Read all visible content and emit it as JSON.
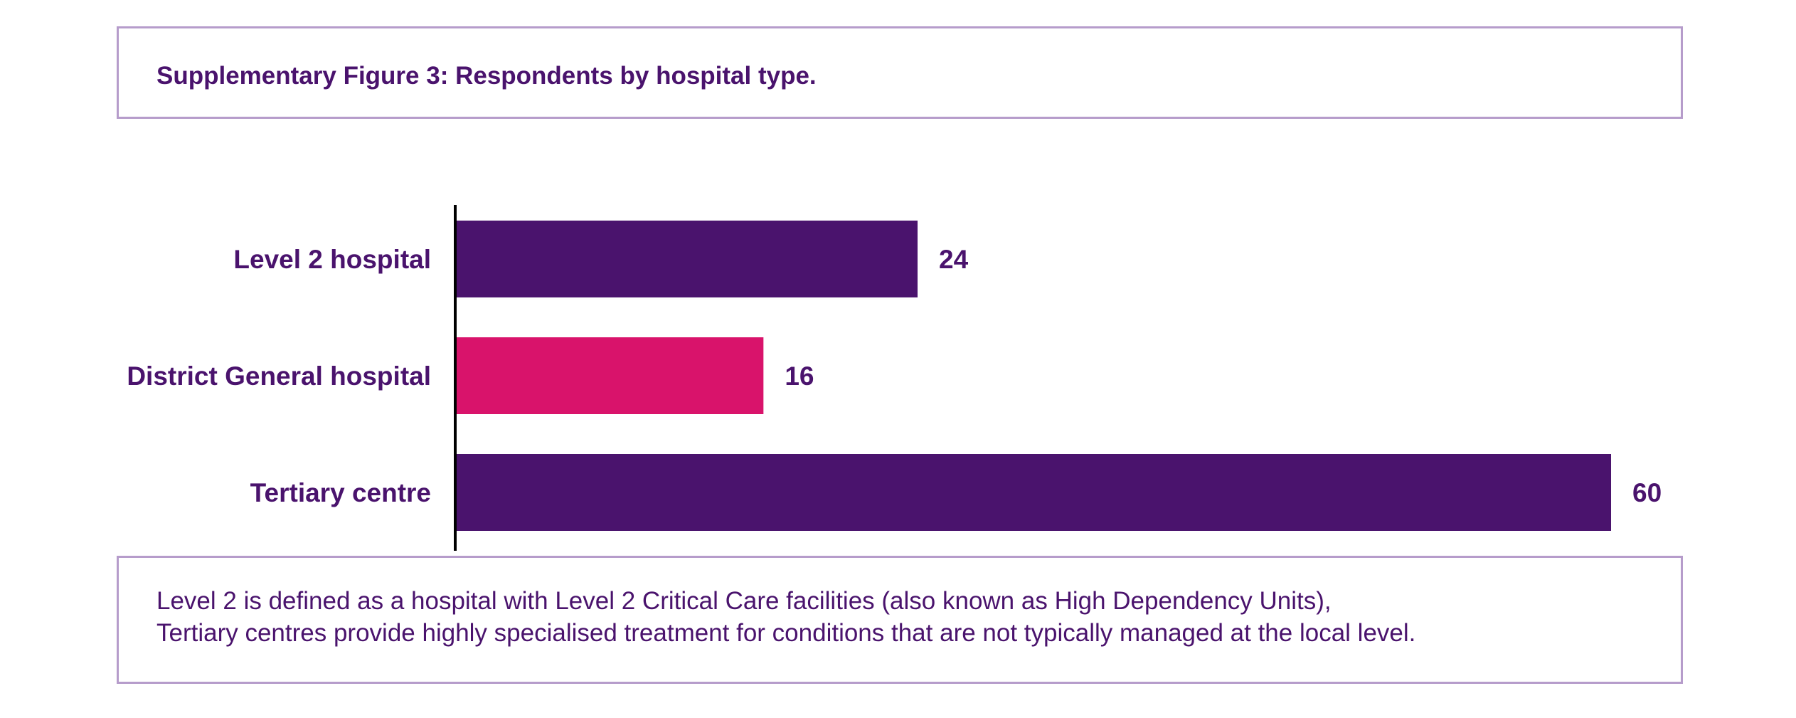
{
  "title": "Supplementary Figure 3: Respondents by hospital type.",
  "notes": {
    "line1": "Level 2 is defined as a hospital with Level 2 Critical Care facilities (also known as High Dependency Units),",
    "line2": "Tertiary centres provide highly specialised treatment for conditions that are not typically managed at the local level."
  },
  "colors": {
    "primary": "#4a136d",
    "accent": "#d9136b",
    "border": "#b69ccb",
    "axis": "#000000"
  },
  "chart_data": {
    "type": "bar",
    "orientation": "horizontal",
    "title": "Supplementary Figure 3: Respondents by hospital type.",
    "xlabel": "",
    "ylabel": "",
    "grid": false,
    "xlim": [
      0,
      60
    ],
    "categories": [
      "Level 2 hospital",
      "District General hospital",
      "Tertiary centre"
    ],
    "values": [
      24,
      16,
      60
    ],
    "bar_colors": [
      "#4a136d",
      "#d9136b",
      "#4a136d"
    ],
    "data_labels": [
      "24",
      "16",
      "60"
    ]
  }
}
